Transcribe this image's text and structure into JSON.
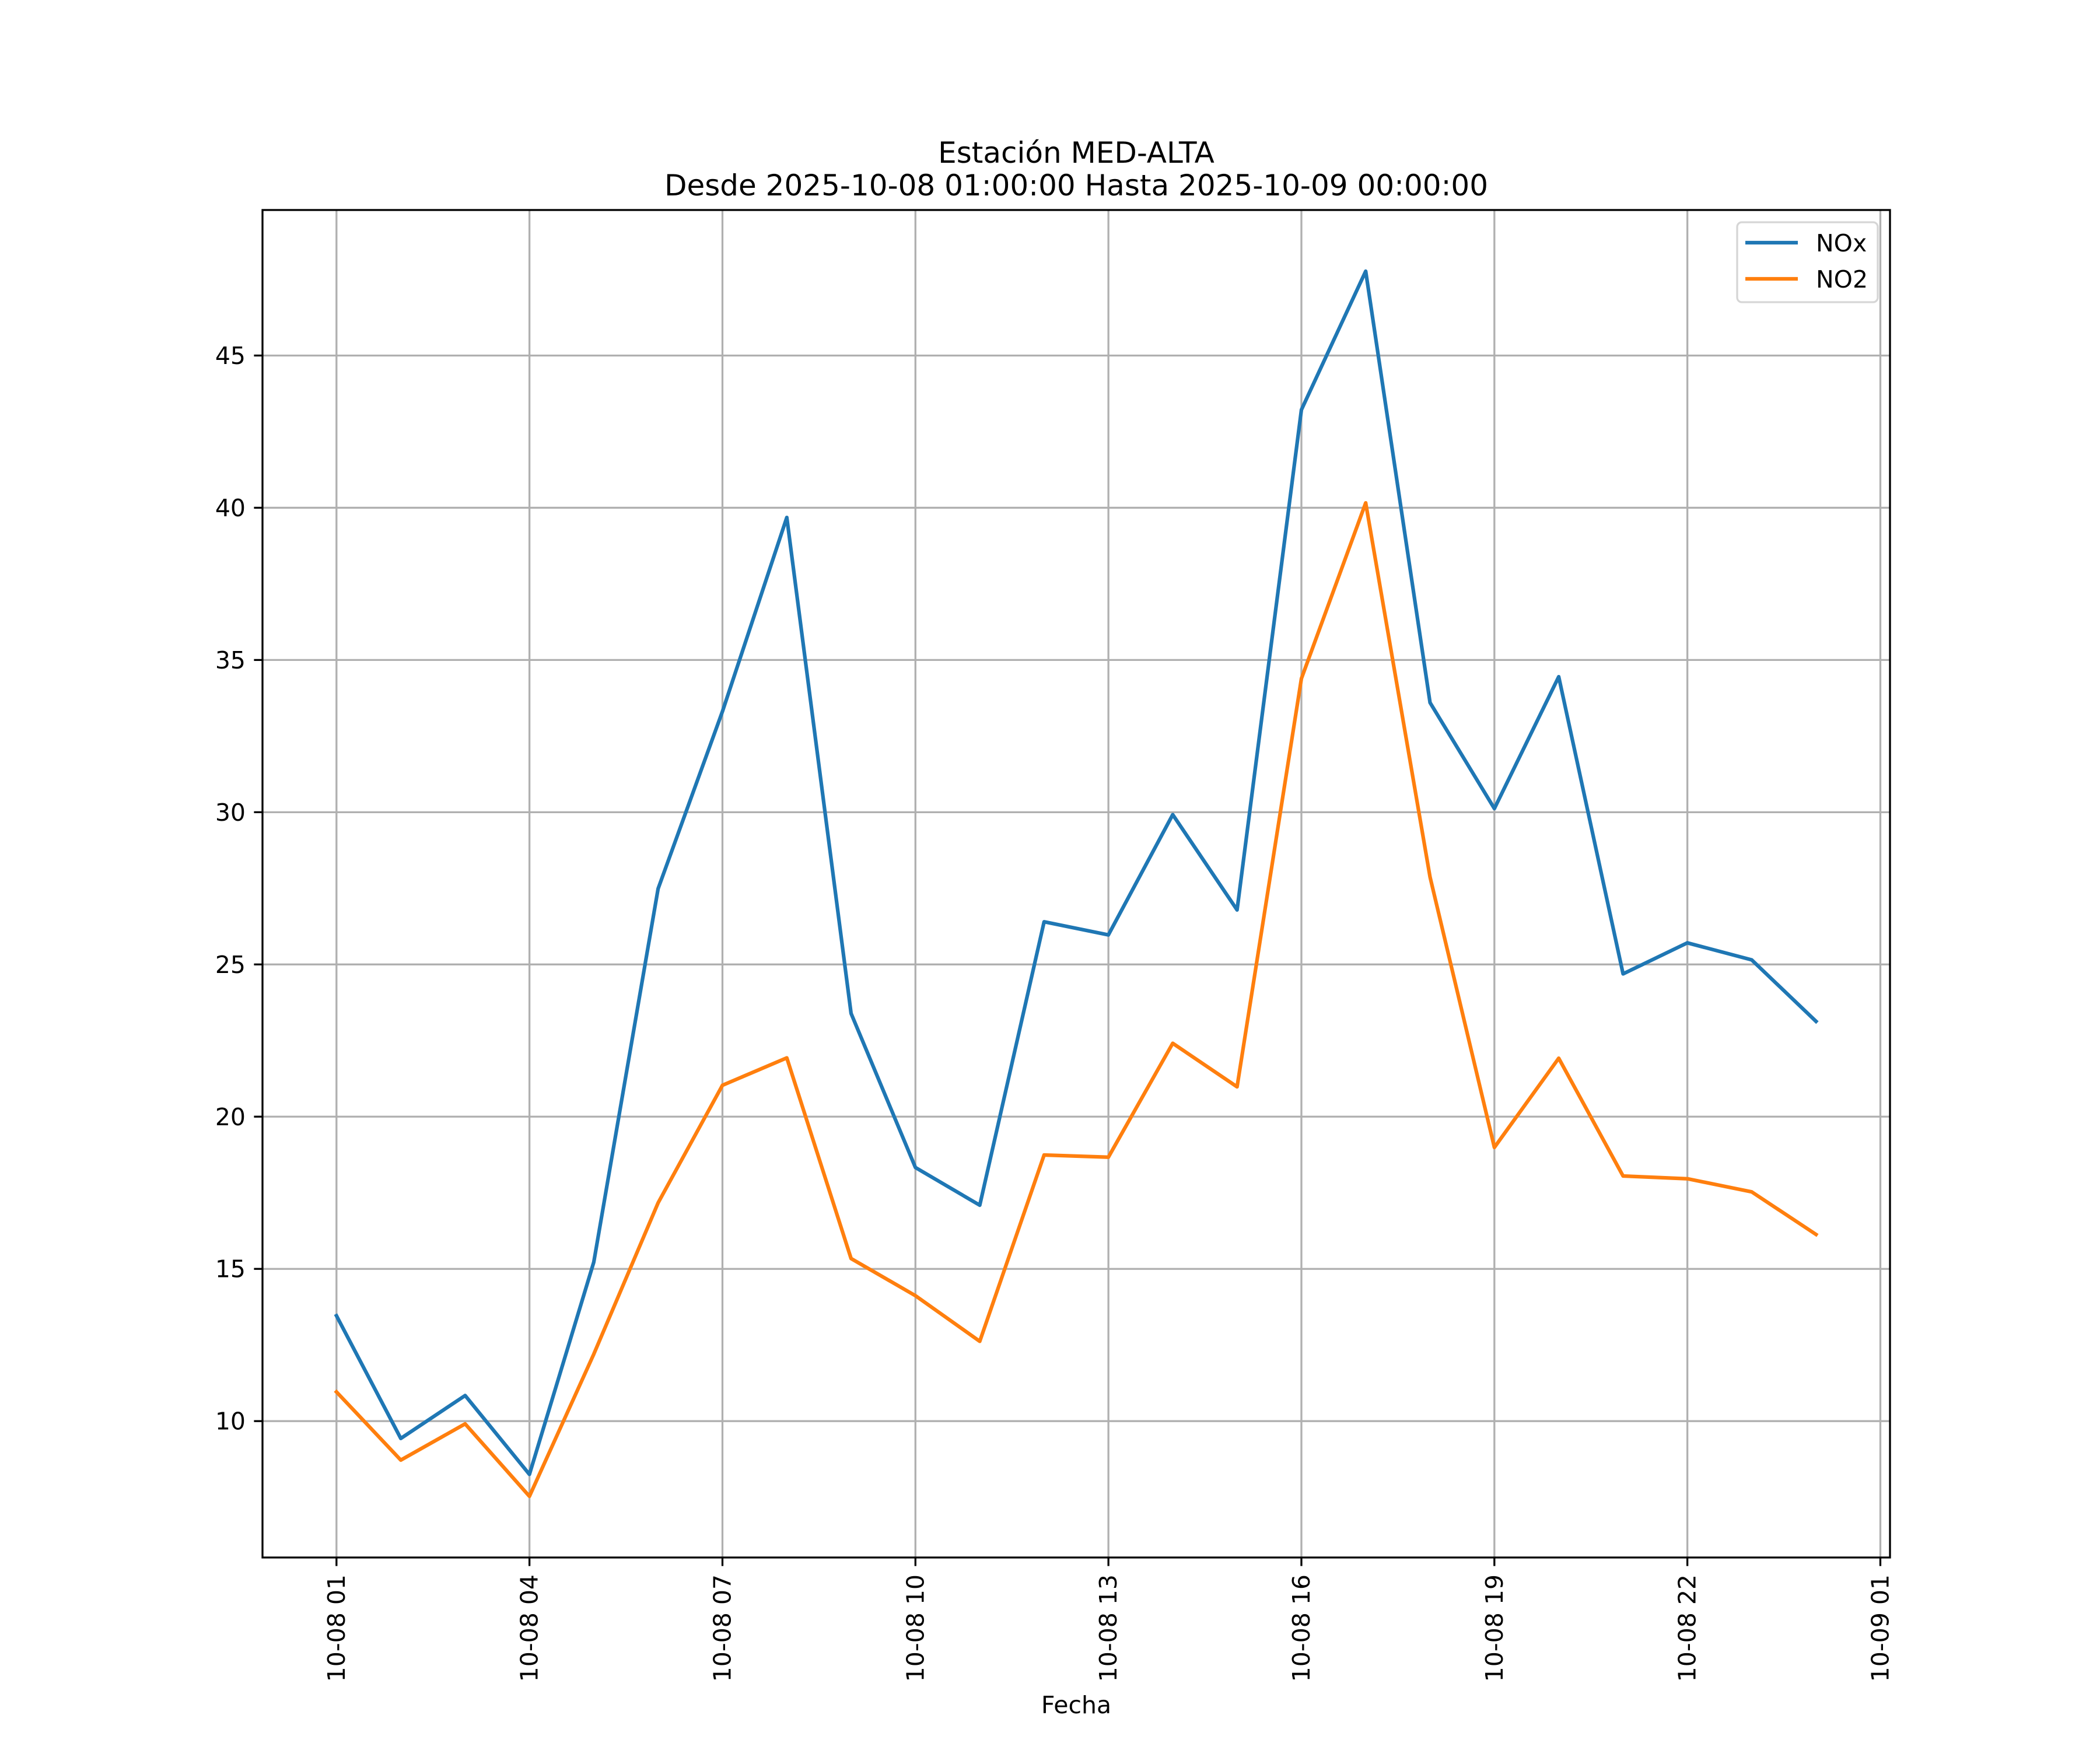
{
  "chart_data": {
    "type": "line",
    "title": "Estación MED-ALTA",
    "subtitle": "Desde 2025-10-08 01:00:00 Hasta 2025-10-09 00:00:00",
    "xlabel": "Fecha",
    "ylabel": "",
    "x": [
      "2025-10-08 01:00",
      "2025-10-08 02:00",
      "2025-10-08 03:00",
      "2025-10-08 04:00",
      "2025-10-08 05:00",
      "2025-10-08 06:00",
      "2025-10-08 07:00",
      "2025-10-08 08:00",
      "2025-10-08 09:00",
      "2025-10-08 10:00",
      "2025-10-08 11:00",
      "2025-10-08 12:00",
      "2025-10-08 13:00",
      "2025-10-08 14:00",
      "2025-10-08 15:00",
      "2025-10-08 16:00",
      "2025-10-08 17:00",
      "2025-10-08 18:00",
      "2025-10-08 19:00",
      "2025-10-08 20:00",
      "2025-10-08 21:00",
      "2025-10-08 22:00",
      "2025-10-08 23:00",
      "2025-10-09 00:00"
    ],
    "x_hours": [
      0,
      1,
      2,
      3,
      4,
      5,
      6,
      7,
      8,
      9,
      10,
      11,
      12,
      13,
      14,
      15,
      16,
      17,
      18,
      19,
      20,
      21,
      22,
      23
    ],
    "series": [
      {
        "name": "NOx",
        "color": "#1f77b4",
        "values": [
          13.46,
          9.43,
          10.84,
          8.25,
          15.22,
          27.49,
          33.31,
          39.68,
          23.39,
          18.33,
          17.09,
          26.4,
          25.97,
          29.92,
          26.79,
          43.22,
          47.77,
          33.6,
          30.12,
          34.45,
          24.69,
          25.71,
          25.15,
          23.13
        ]
      },
      {
        "name": "NO2",
        "color": "#ff7f0e",
        "values": [
          10.96,
          8.72,
          9.91,
          7.53,
          12.2,
          17.17,
          21.03,
          21.93,
          15.34,
          14.12,
          12.62,
          18.74,
          18.67,
          22.41,
          20.98,
          34.39,
          40.16,
          27.87,
          18.99,
          21.92,
          18.05,
          17.96,
          17.53,
          16.13
        ]
      }
    ],
    "xlim_hours": [
      -1.15,
      24.15
    ],
    "ylim": [
      5.52,
      49.78
    ],
    "x_ticks": [
      {
        "hour": 0,
        "label": "10-08 01"
      },
      {
        "hour": 3,
        "label": "10-08 04"
      },
      {
        "hour": 6,
        "label": "10-08 07"
      },
      {
        "hour": 9,
        "label": "10-08 10"
      },
      {
        "hour": 12,
        "label": "10-08 13"
      },
      {
        "hour": 15,
        "label": "10-08 16"
      },
      {
        "hour": 18,
        "label": "10-08 19"
      },
      {
        "hour": 21,
        "label": "10-08 22"
      },
      {
        "hour": 24,
        "label": "10-09 01"
      }
    ],
    "y_ticks": [
      {
        "value": 10,
        "label": "10"
      },
      {
        "value": 15,
        "label": "15"
      },
      {
        "value": 20,
        "label": "20"
      },
      {
        "value": 25,
        "label": "25"
      },
      {
        "value": 30,
        "label": "30"
      },
      {
        "value": 35,
        "label": "35"
      },
      {
        "value": 40,
        "label": "40"
      },
      {
        "value": 45,
        "label": "45"
      }
    ],
    "grid": true,
    "grid_color": "#b0b0b0",
    "legend": {
      "placement": "top-right",
      "entries": [
        "NOx",
        "NO2"
      ]
    }
  }
}
